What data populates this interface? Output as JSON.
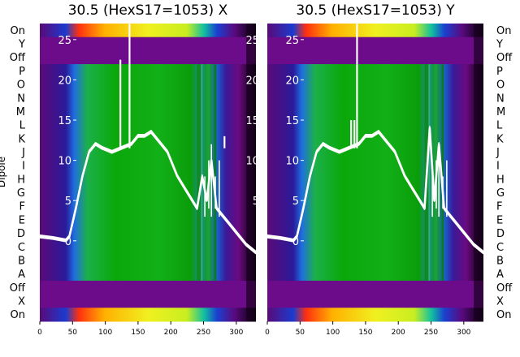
{
  "chart_data": [
    {
      "type": "heatmap",
      "title": "30.5 (HexS17=1053) X",
      "ylabel": "Dipole",
      "row_labels": [
        "On",
        "Y",
        "Off",
        "P",
        "O",
        "N",
        "M",
        "L",
        "K",
        "J",
        "I",
        "H",
        "G",
        "F",
        "E",
        "D",
        "C",
        "B",
        "A",
        "Off",
        "X",
        "On"
      ],
      "x_ticks": [
        0,
        50,
        100,
        150,
        200,
        250,
        300
      ],
      "xlim": [
        0,
        330
      ],
      "overlay_ticks": [
        0,
        5,
        10,
        15,
        20,
        25
      ],
      "overlay_ylim": [
        -10,
        27
      ],
      "overlay_line": {
        "x": [
          0,
          20,
          40,
          45,
          55,
          65,
          75,
          85,
          95,
          110,
          125,
          140,
          150,
          160,
          170,
          180,
          195,
          210,
          225,
          240,
          248,
          255,
          262,
          270,
          280,
          290,
          300,
          315,
          330
        ],
        "y": [
          0.5,
          0.3,
          0,
          0.5,
          4,
          8,
          11,
          12,
          11.5,
          11,
          11.5,
          12,
          13,
          13,
          13.5,
          12.5,
          11,
          8,
          6,
          4,
          8,
          5,
          10,
          4,
          3,
          2,
          1,
          -0.5,
          -1.5
        ]
      },
      "overlay_spikes": [
        {
          "x": 123,
          "y": 22.5
        },
        {
          "x": 137,
          "y": 27
        },
        {
          "x": 282,
          "y": 13
        }
      ]
    },
    {
      "type": "heatmap",
      "title": "30.5 (HexS17=1053) Y",
      "row_labels": [
        "On",
        "Y",
        "Off",
        "P",
        "O",
        "N",
        "M",
        "L",
        "K",
        "J",
        "I",
        "H",
        "G",
        "F",
        "E",
        "D",
        "C",
        "B",
        "A",
        "Off",
        "X",
        "On"
      ],
      "x_ticks": [
        0,
        50,
        100,
        150,
        200,
        250,
        300
      ],
      "xlim": [
        0,
        330
      ],
      "overlay_ticks": [
        0,
        5,
        10,
        15,
        20,
        25
      ],
      "overlay_ylim": [
        -10,
        27
      ],
      "overlay_line": {
        "x": [
          0,
          20,
          40,
          45,
          55,
          65,
          75,
          85,
          95,
          110,
          125,
          140,
          150,
          160,
          170,
          180,
          195,
          210,
          225,
          240,
          248,
          255,
          262,
          270,
          280,
          290,
          300,
          315,
          330
        ],
        "y": [
          0.5,
          0.3,
          0,
          0.5,
          4,
          8,
          11,
          12,
          11.5,
          11,
          11.5,
          12,
          13,
          13,
          13.5,
          12.5,
          11,
          8,
          6,
          4,
          14,
          5,
          12,
          4,
          3,
          2,
          1,
          -0.5,
          -1.5
        ]
      },
      "overlay_spikes": [
        {
          "x": 128,
          "y": 15
        },
        {
          "x": 133,
          "y": 15
        },
        {
          "x": 137,
          "y": 27
        }
      ]
    }
  ]
}
